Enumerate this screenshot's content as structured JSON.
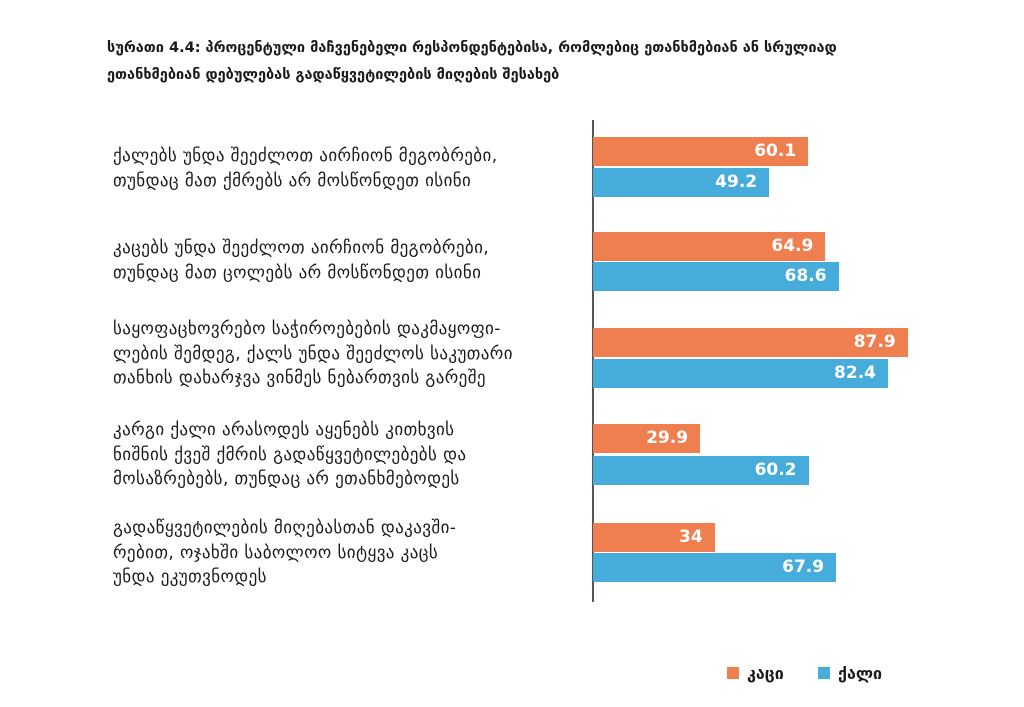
{
  "chart_data": {
    "type": "bar",
    "orientation": "horizontal",
    "title_lines": [
      "სურათი 4.4: პროცენტული მაჩვენებელი რესპონდენტებისა, რომლებიც ეთანხმებიან ან სრულიად",
      "ეთანხმებიან დებულებას გადაწყვეტილების მიღების შესახებ"
    ],
    "categories": [
      [
        "ქალებს უნდა შეეძლოთ აირჩიონ მეგობრები,",
        "თუნდაც მათ ქმრებს  არ მოსწონდეთ ისინი"
      ],
      [
        "კაცებს უნდა შეეძლოთ აირჩიონ მეგობრები,",
        "თუნდაც მათ ცოლებს არ მოსწონდეთ ისინი"
      ],
      [
        "საყოფაცხოვრებო საჭიროებების დაკმაყოფი-",
        "ლების შემდეგ, ქალს უნდა შეეძლოს საკუთარი",
        "თანხის დახარჯვა ვინმეს ნებართვის გარეშე"
      ],
      [
        "კარგი ქალი არასოდეს აყენებს კითხვის",
        "ნიშნის ქვეშ ქმრის გადაწყვეტილებებს და",
        "მოსაზრებებს, თუნდაც არ ეთანხმებოდეს"
      ],
      [
        "გადაწყვეტილების მიღებასთან დაკავში-",
        "რებით, ოჯახში საბოლოო სიტყვა კაცს",
        "უნდა ეკუთვნოდეს"
      ]
    ],
    "series": [
      {
        "name": "კაცი",
        "color": "#F07F50",
        "values": [
          60.1,
          64.9,
          87.9,
          29.9,
          34
        ],
        "labels": [
          "60.1",
          "64.9",
          "87.9",
          "29.9",
          "34"
        ]
      },
      {
        "name": "ქალი",
        "color": "#45ACDC",
        "values": [
          49.2,
          68.6,
          82.4,
          60.2,
          67.9
        ],
        "labels": [
          "49.2",
          "68.6",
          "82.4",
          "60.2",
          "67.9"
        ]
      }
    ],
    "xlim": [
      0,
      100
    ],
    "grid": false,
    "legend_position": "bottom-right"
  }
}
